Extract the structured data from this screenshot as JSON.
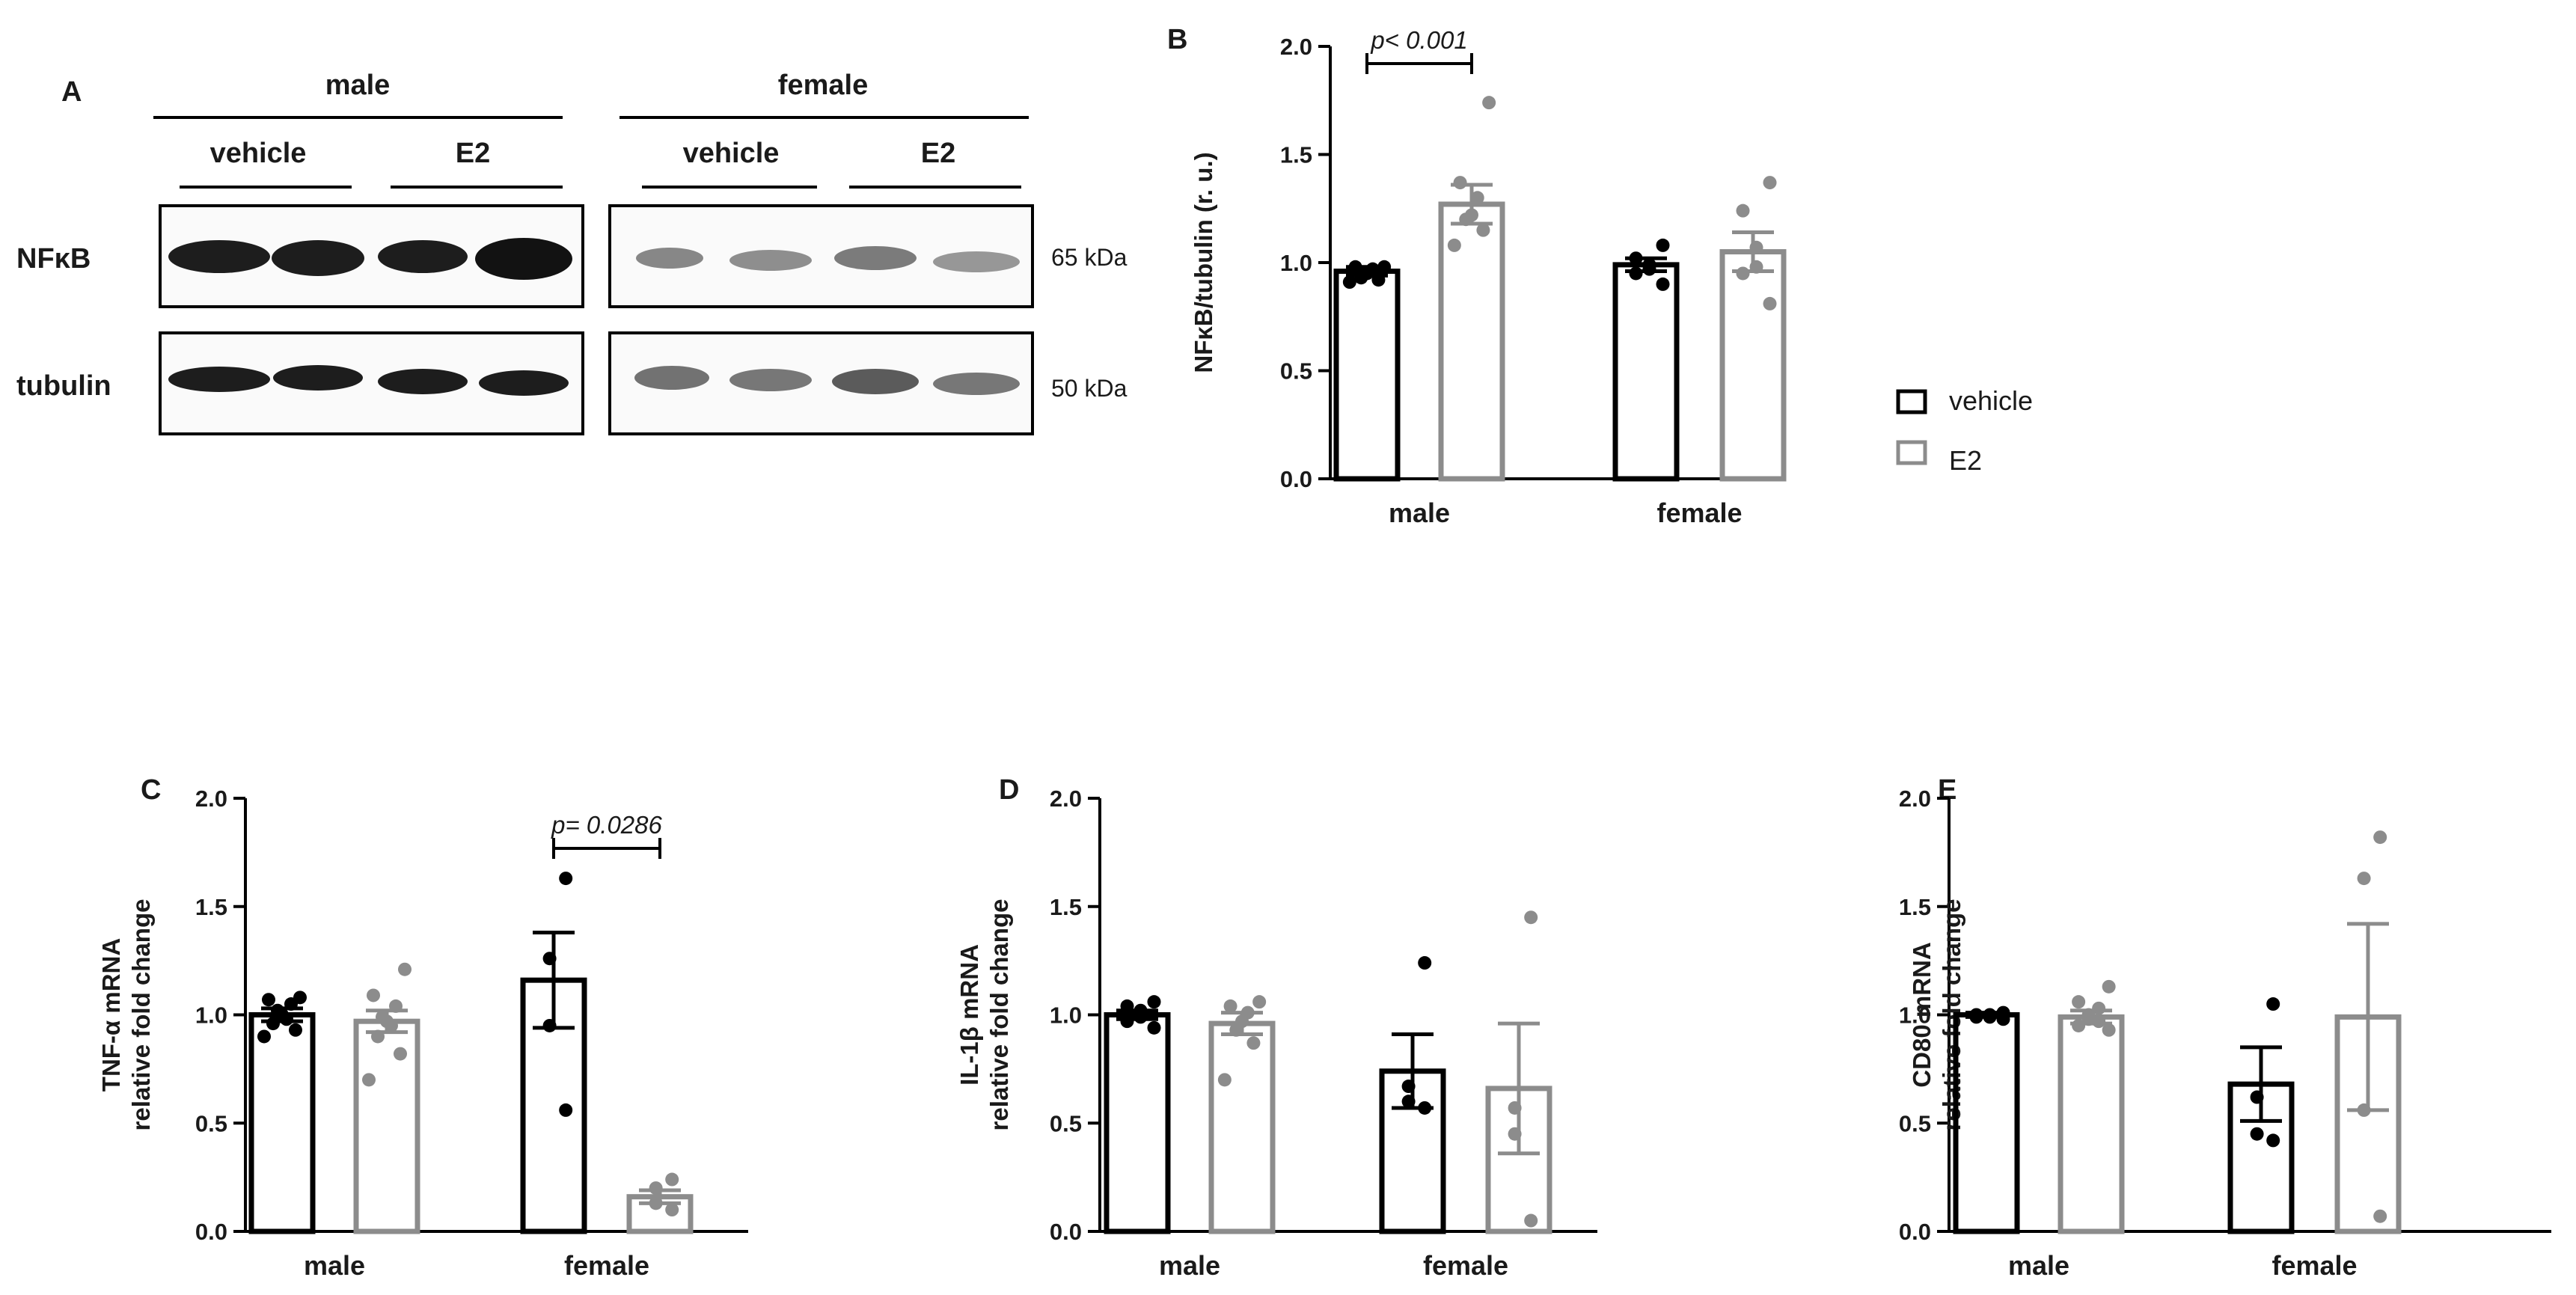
{
  "panel_a": {
    "panel_label": "A",
    "groups": [
      {
        "label": "male",
        "subgroups": [
          "vehicle",
          "E2"
        ]
      },
      {
        "label": "female",
        "subgroups": [
          "vehicle",
          "E2"
        ]
      }
    ],
    "rows": [
      {
        "label": "NFκB",
        "size": "65 kDa"
      },
      {
        "label": "tubulin",
        "size": "50 kDa"
      }
    ]
  },
  "legend": {
    "items": [
      {
        "label": "vehicle",
        "color": "#000000"
      },
      {
        "label": "E2",
        "color": "#8c8c8c"
      }
    ]
  },
  "colors": {
    "vehicle": "#000000",
    "e2": "#8c8c8c"
  },
  "chart_data": [
    {
      "id": "B",
      "type": "bar",
      "panel_label": "B",
      "ylabel": "NFκB/tubulin (r. u.)",
      "ylim": [
        0,
        2.0
      ],
      "yticks": [
        "0.0",
        "0.5",
        "1.0",
        "1.5",
        "2.0"
      ],
      "categories": [
        "male",
        "female"
      ],
      "series": [
        {
          "name": "vehicle",
          "values": [
            0.96,
            0.99
          ],
          "sem": [
            0.02,
            0.03
          ],
          "points": [
            [
              0.98,
              0.98,
              0.97,
              0.95,
              0.93,
              0.92,
              0.91
            ],
            [
              1.08,
              1.02,
              0.99,
              0.97,
              0.95,
              0.9
            ]
          ]
        },
        {
          "name": "E2",
          "values": [
            1.27,
            1.05
          ],
          "sem": [
            0.09,
            0.09
          ],
          "points": [
            [
              1.74,
              1.37,
              1.3,
              1.22,
              1.2,
              1.15,
              1.08
            ],
            [
              1.37,
              1.24,
              1.07,
              0.98,
              0.95,
              0.81
            ]
          ]
        }
      ],
      "annotations": [
        {
          "text": "p< 0.001",
          "category": "male"
        }
      ]
    },
    {
      "id": "C",
      "type": "bar",
      "panel_label": "C",
      "ylabel": [
        "TNF-α mRNA",
        "relative fold change"
      ],
      "ylim": [
        0,
        2.0
      ],
      "yticks": [
        "0.0",
        "0.5",
        "1.0",
        "1.5",
        "2.0"
      ],
      "categories": [
        "male",
        "female"
      ],
      "series": [
        {
          "name": "vehicle",
          "values": [
            1.0,
            1.16
          ],
          "sem": [
            0.03,
            0.22
          ],
          "points": [
            [
              1.08,
              1.07,
              1.05,
              1.02,
              1.0,
              0.98,
              0.96,
              0.93,
              0.9
            ],
            [
              1.63,
              1.26,
              0.95,
              0.56
            ]
          ]
        },
        {
          "name": "E2",
          "values": [
            0.97,
            0.16
          ],
          "sem": [
            0.05,
            0.03
          ],
          "points": [
            [
              1.21,
              1.09,
              1.04,
              0.99,
              0.97,
              0.95,
              0.9,
              0.82,
              0.7
            ],
            [
              0.24,
              0.2,
              0.13,
              0.1
            ]
          ]
        }
      ],
      "annotations": [
        {
          "text": "p= 0.0286",
          "category": "female"
        }
      ]
    },
    {
      "id": "D",
      "type": "bar",
      "panel_label": "D",
      "ylabel": [
        "IL-1β mRNA",
        "relative fold change"
      ],
      "ylim": [
        0,
        2.0
      ],
      "yticks": [
        "0.0",
        "0.5",
        "1.0",
        "1.5",
        "2.0"
      ],
      "categories": [
        "male",
        "female"
      ],
      "series": [
        {
          "name": "vehicle",
          "values": [
            1.0,
            0.74
          ],
          "sem": [
            0.02,
            0.17
          ],
          "points": [
            [
              1.06,
              1.04,
              1.02,
              0.99,
              0.97,
              0.94
            ],
            [
              1.24,
              0.67,
              0.6,
              0.57
            ]
          ]
        },
        {
          "name": "E2",
          "values": [
            0.96,
            0.66
          ],
          "sem": [
            0.05,
            0.3
          ],
          "points": [
            [
              1.06,
              1.04,
              1.01,
              0.97,
              0.93,
              0.87,
              0.7
            ],
            [
              1.45,
              0.57,
              0.45,
              0.05
            ]
          ]
        }
      ],
      "annotations": []
    },
    {
      "id": "E",
      "type": "bar",
      "panel_label": "E",
      "ylabel": [
        "CD80 mRNA",
        "relative fold change"
      ],
      "ylim": [
        0,
        2.0
      ],
      "yticks": [
        "0.0",
        "0.5",
        "1.0",
        "1.5",
        "2.0"
      ],
      "categories": [
        "male",
        "female"
      ],
      "series": [
        {
          "name": "vehicle",
          "values": [
            1.0,
            0.68
          ],
          "sem": [
            0.01,
            0.17
          ],
          "points": [
            [
              1.01,
              1.0,
              1.0,
              0.99,
              0.99,
              0.98
            ],
            [
              1.05,
              0.62,
              0.45,
              0.42
            ]
          ]
        },
        {
          "name": "E2",
          "values": [
            0.99,
            0.99
          ],
          "sem": [
            0.03,
            0.43
          ],
          "points": [
            [
              1.13,
              1.06,
              1.03,
              1.0,
              0.98,
              0.97,
              0.95,
              0.93
            ],
            [
              1.82,
              1.63,
              0.56,
              0.07
            ]
          ]
        }
      ],
      "annotations": []
    }
  ]
}
